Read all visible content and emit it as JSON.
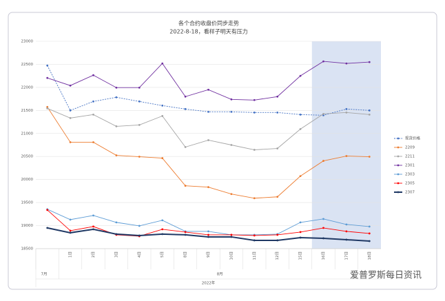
{
  "chart_data": {
    "type": "line",
    "title": "各个合约收盘价同步走势",
    "subtitle": "2022-8-18，看样子明天有压力",
    "categories": [
      null,
      "1日",
      "2日",
      "3日",
      "4日",
      "5日",
      "8日",
      "9日",
      "10日",
      "11日",
      "12日",
      "15日",
      "16日",
      "17日",
      "18日"
    ],
    "category_groups": [
      {
        "label": "7月",
        "span": 1
      },
      {
        "label": "8月",
        "span": 14
      }
    ],
    "x_group_label": "2022年",
    "ylim": [
      18500,
      23000
    ],
    "yticks": [
      18500,
      19000,
      19500,
      20000,
      20500,
      21000,
      21500,
      22000,
      22500,
      23000
    ],
    "grid": true,
    "legend": "right",
    "watermark": "爱普罗斯每日资讯",
    "series": [
      {
        "name": "现货价格",
        "color": "#4472c4",
        "dashed": true,
        "values": [
          22475,
          21500,
          21695,
          21785,
          21695,
          21605,
          21530,
          21470,
          21470,
          21455,
          21455,
          21410,
          21395,
          21530,
          21500
        ]
      },
      {
        "name": "2209",
        "color": "#ed7d31",
        "values": [
          21575,
          20810,
          20810,
          20525,
          20495,
          20465,
          19865,
          19835,
          19685,
          19595,
          19625,
          20075,
          20405,
          20510,
          20495
        ]
      },
      {
        "name": "2211",
        "color": "#a5a5a5",
        "values": [
          21545,
          21335,
          21410,
          21155,
          21185,
          21380,
          20705,
          20855,
          20750,
          20645,
          20675,
          21095,
          21425,
          21455,
          21410
        ]
      },
      {
        "name": "2301",
        "color": "#7030a0",
        "values": [
          22205,
          22040,
          22265,
          21995,
          21995,
          22520,
          21800,
          21950,
          21740,
          21725,
          21800,
          22250,
          22565,
          22520,
          22550
        ]
      },
      {
        "name": "2303",
        "color": "#5b9bd5",
        "values": [
          19355,
          19130,
          19220,
          19070,
          18995,
          19115,
          18875,
          18875,
          18800,
          18800,
          18815,
          19070,
          19145,
          19025,
          18980
        ]
      },
      {
        "name": "2305",
        "color": "#ff0000",
        "values": [
          19340,
          18890,
          18980,
          18800,
          18770,
          18920,
          18860,
          18800,
          18800,
          18785,
          18800,
          18860,
          18950,
          18875,
          18830
        ]
      },
      {
        "name": "2307",
        "color": "#1f3864",
        "width": 2,
        "values": [
          18950,
          18845,
          18920,
          18815,
          18785,
          18815,
          18800,
          18755,
          18755,
          18680,
          18680,
          18740,
          18725,
          18695,
          18665
        ]
      }
    ]
  }
}
